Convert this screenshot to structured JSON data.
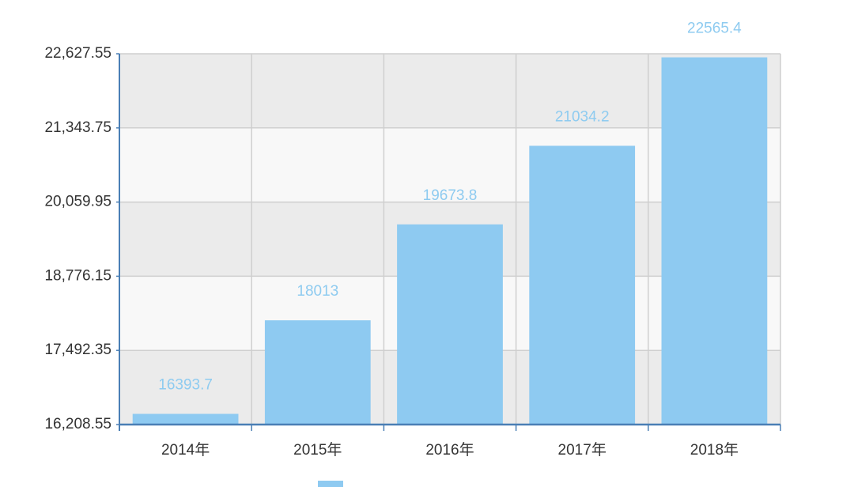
{
  "chart_data": {
    "type": "bar",
    "categories": [
      "2014年",
      "2015年",
      "2016年",
      "2017年",
      "2018年"
    ],
    "values": [
      16393.7,
      18013,
      19673.8,
      21034.2,
      22565.4
    ],
    "color": "#8ecaf1",
    "ylim": [
      16208.55,
      22627.55
    ],
    "yticks": [
      {
        "value": 16208.55,
        "label": "16,208.55"
      },
      {
        "value": 17492.35,
        "label": "17,492.35"
      },
      {
        "value": 18776.15,
        "label": "18,776.15"
      },
      {
        "value": 20059.95,
        "label": "20,059.95"
      },
      {
        "value": 21343.75,
        "label": "21,343.75"
      },
      {
        "value": 22627.55,
        "label": "22,627.55"
      }
    ],
    "grid": true
  }
}
